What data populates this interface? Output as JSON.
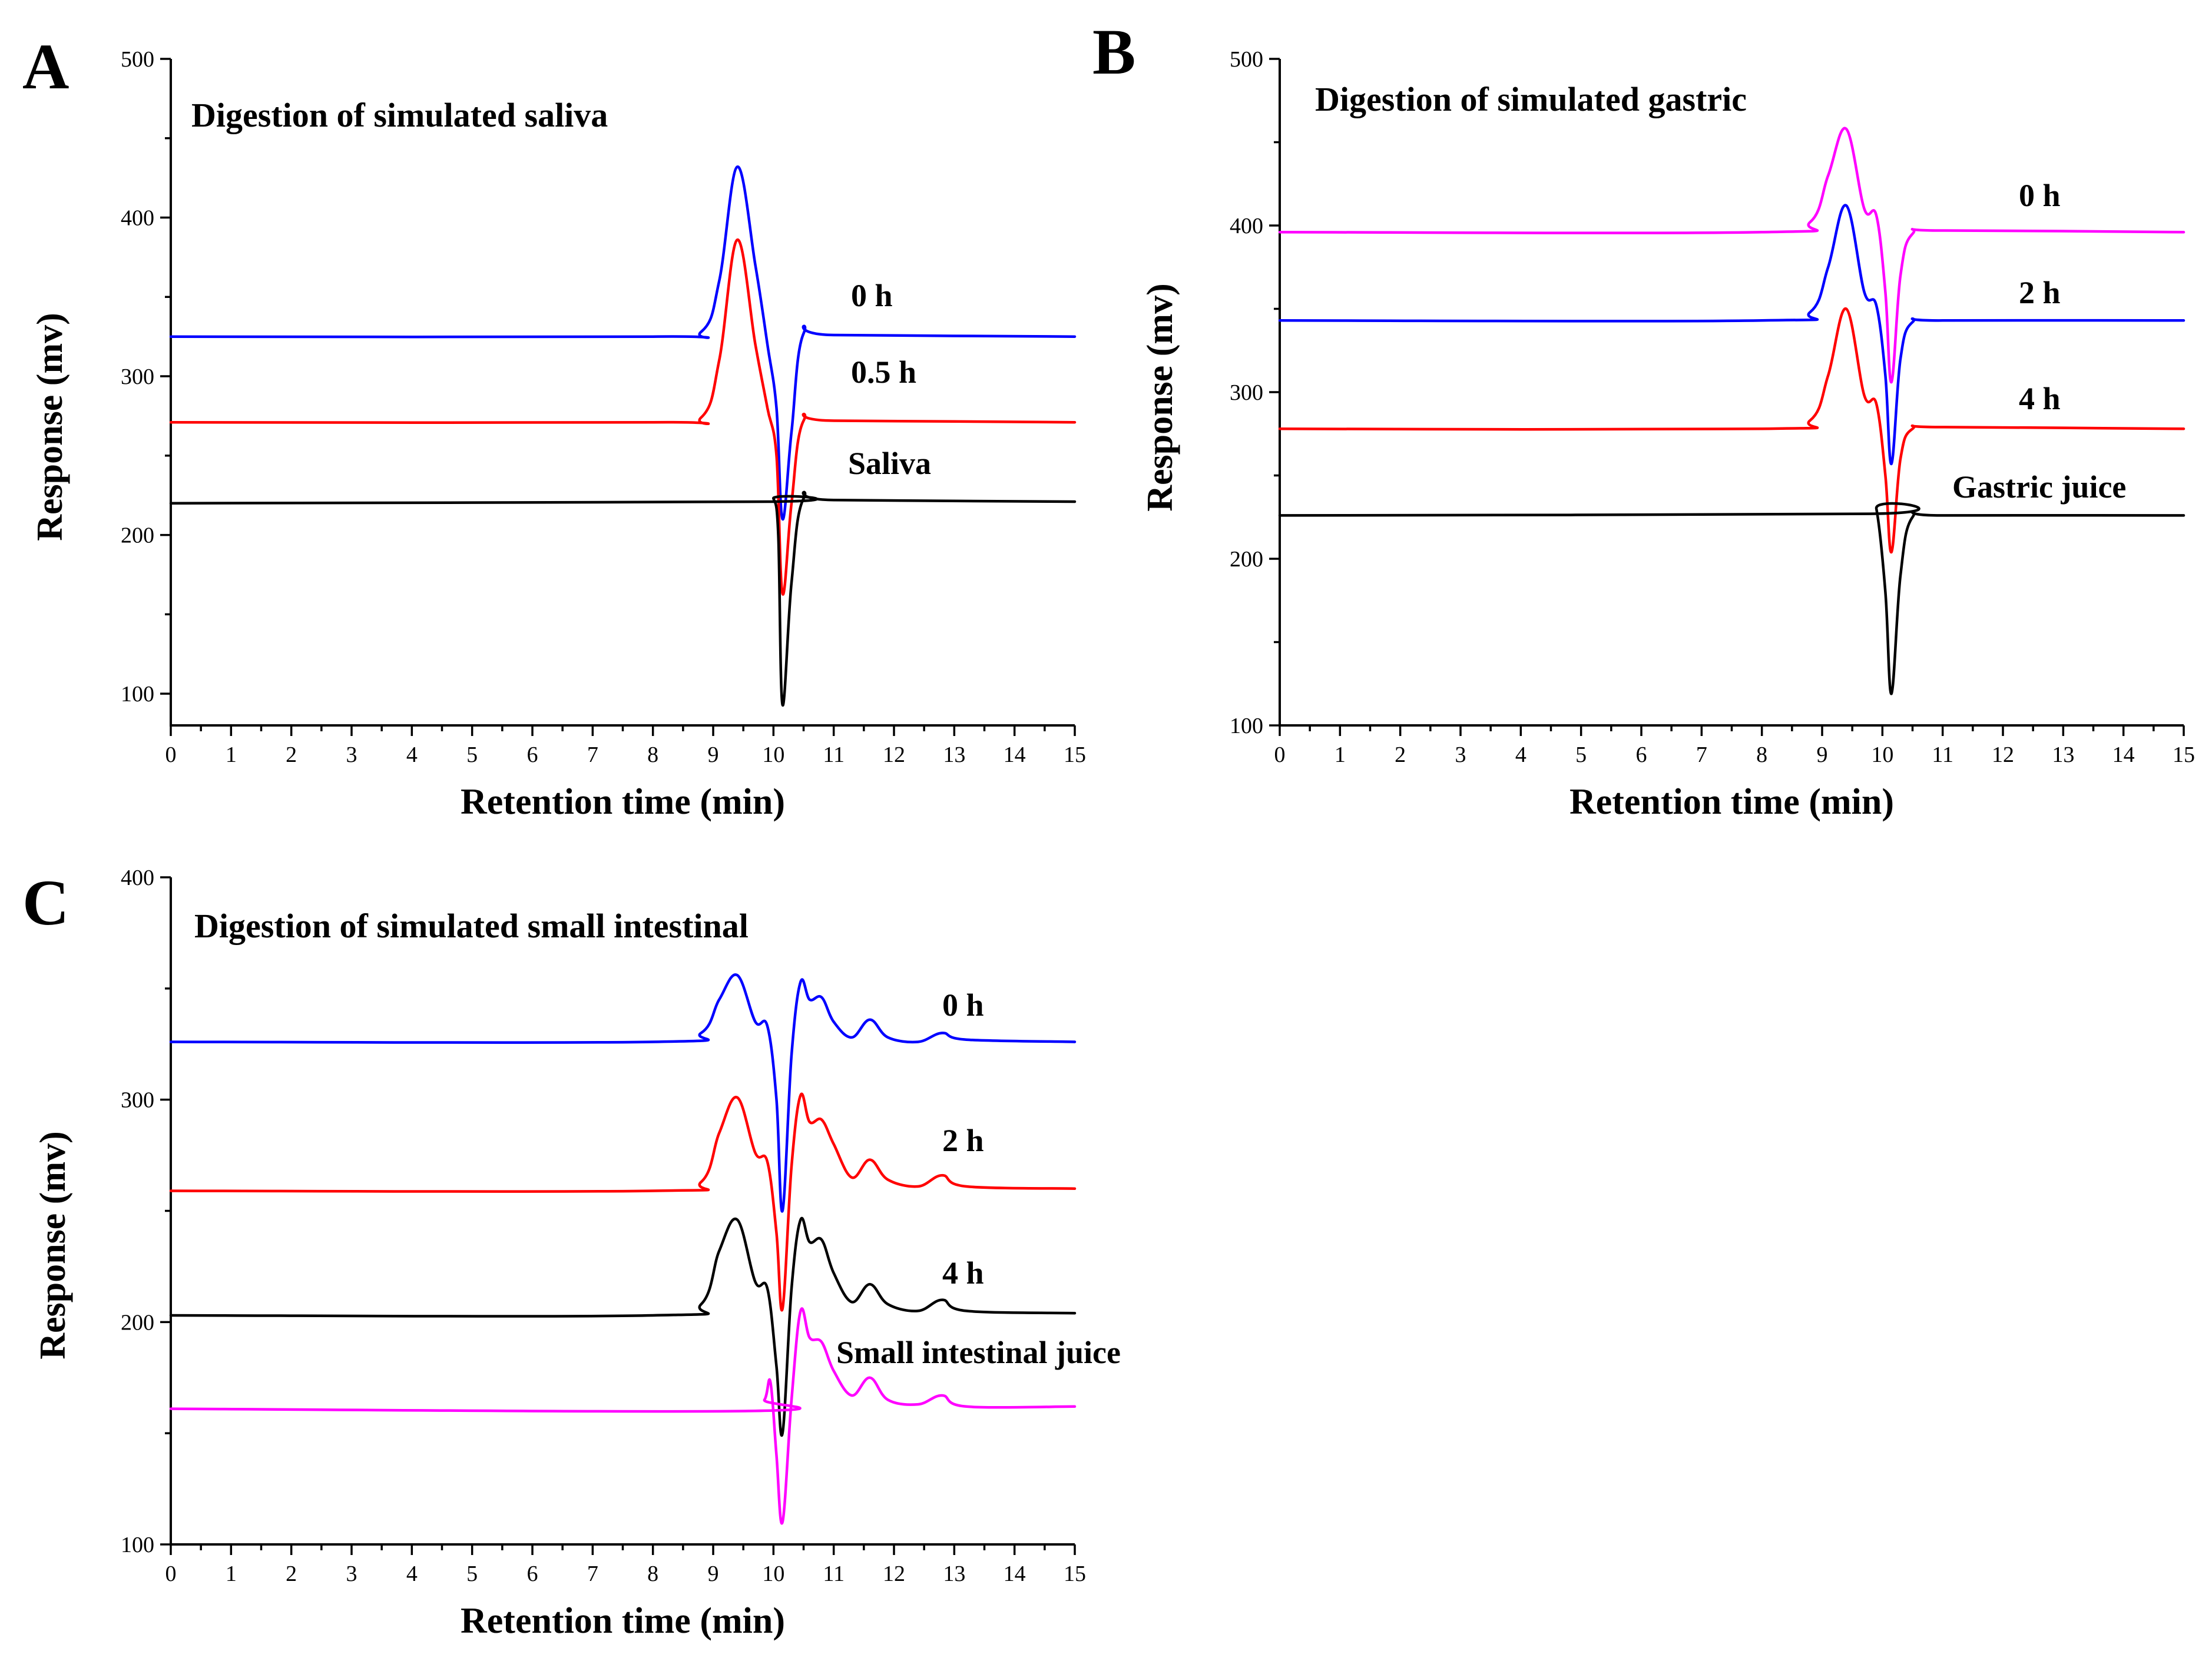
{
  "chart_data": [
    {
      "panel_letter": "A",
      "type": "line",
      "title": "Digestion of simulated saliva",
      "xlabel": "Retention time (min)",
      "ylabel": "Response (mv)",
      "xlim": [
        0,
        15
      ],
      "ylim": [
        80,
        500
      ],
      "x_ticks": [
        0,
        1,
        2,
        3,
        4,
        5,
        6,
        7,
        8,
        9,
        10,
        11,
        12,
        13,
        14,
        15
      ],
      "y_ticks": [
        100,
        200,
        300,
        400,
        500
      ],
      "grid": false,
      "series": [
        {
          "name": "0 h",
          "color": "#0000ff",
          "points": [
            [
              0,
              325
            ],
            [
              8.0,
              325
            ],
            [
              8.8,
              328
            ],
            [
              9.1,
              360
            ],
            [
              9.4,
              432
            ],
            [
              9.7,
              370
            ],
            [
              9.9,
              320
            ],
            [
              10.05,
              280
            ],
            [
              10.15,
              210
            ],
            [
              10.3,
              265
            ],
            [
              10.5,
              327
            ],
            [
              11.0,
              326
            ],
            [
              15,
              325
            ]
          ]
        },
        {
          "name": "0.5 h",
          "color": "#ff0000",
          "points": [
            [
              0,
              271
            ],
            [
              8.0,
              271
            ],
            [
              8.8,
              274
            ],
            [
              9.1,
              310
            ],
            [
              9.4,
              386
            ],
            [
              9.7,
              320
            ],
            [
              9.9,
              280
            ],
            [
              10.05,
              250
            ],
            [
              10.15,
              163
            ],
            [
              10.3,
              220
            ],
            [
              10.5,
              272
            ],
            [
              11.0,
              272
            ],
            [
              15,
              271
            ]
          ]
        },
        {
          "name": "Saliva",
          "color": "#000000",
          "points": [
            [
              0,
              220
            ],
            [
              9.9,
              221
            ],
            [
              10.0,
              223
            ],
            [
              10.08,
              200
            ],
            [
              10.15,
              93
            ],
            [
              10.3,
              170
            ],
            [
              10.5,
              223
            ],
            [
              11.0,
              222
            ],
            [
              15,
              221
            ]
          ]
        }
      ]
    },
    {
      "panel_letter": "B",
      "type": "line",
      "title": "Digestion of simulated gastric",
      "xlabel": "Retention time (min)",
      "ylabel": "Response (mv)",
      "xlim": [
        0,
        15
      ],
      "ylim": [
        100,
        500
      ],
      "x_ticks": [
        0,
        1,
        2,
        3,
        4,
        5,
        6,
        7,
        8,
        9,
        10,
        11,
        12,
        13,
        14,
        15
      ],
      "y_ticks": [
        100,
        200,
        300,
        400,
        500
      ],
      "grid": false,
      "series": [
        {
          "name": "0 h",
          "color": "#ff00ff",
          "points": [
            [
              0,
              396
            ],
            [
              8.0,
              396
            ],
            [
              8.8,
              402
            ],
            [
              9.1,
              430
            ],
            [
              9.4,
              458
            ],
            [
              9.7,
              410
            ],
            [
              9.9,
              406
            ],
            [
              10.05,
              360
            ],
            [
              10.15,
              306
            ],
            [
              10.3,
              370
            ],
            [
              10.5,
              395
            ],
            [
              11.0,
              397
            ],
            [
              15,
              396
            ]
          ]
        },
        {
          "name": "2 h",
          "color": "#0000ff",
          "points": [
            [
              0,
              343
            ],
            [
              8.0,
              343
            ],
            [
              8.8,
              348
            ],
            [
              9.1,
              375
            ],
            [
              9.4,
              412
            ],
            [
              9.7,
              360
            ],
            [
              9.9,
              352
            ],
            [
              10.05,
              310
            ],
            [
              10.15,
              257
            ],
            [
              10.3,
              320
            ],
            [
              10.5,
              342
            ],
            [
              11.0,
              343
            ],
            [
              15,
              343
            ]
          ]
        },
        {
          "name": "4 h",
          "color": "#ff0000",
          "points": [
            [
              0,
              278
            ],
            [
              8.0,
              278
            ],
            [
              8.8,
              283
            ],
            [
              9.1,
              310
            ],
            [
              9.4,
              350
            ],
            [
              9.7,
              298
            ],
            [
              9.9,
              293
            ],
            [
              10.05,
              250
            ],
            [
              10.15,
              204
            ],
            [
              10.3,
              260
            ],
            [
              10.5,
              278
            ],
            [
              11.0,
              279
            ],
            [
              15,
              278
            ]
          ]
        },
        {
          "name": "Gastric juice",
          "color": "#000000",
          "points": [
            [
              0,
              226
            ],
            [
              9.8,
              227
            ],
            [
              9.9,
              230
            ],
            [
              10.05,
              180
            ],
            [
              10.15,
              119
            ],
            [
              10.3,
              190
            ],
            [
              10.5,
              225
            ],
            [
              11.0,
              226
            ],
            [
              15,
              226
            ]
          ]
        }
      ]
    },
    {
      "panel_letter": "C",
      "type": "line",
      "title": "Digestion of simulated small intestinal",
      "xlabel": "Retention time (min)",
      "ylabel": "Response (mv)",
      "xlim": [
        0,
        15
      ],
      "ylim": [
        100,
        400
      ],
      "x_ticks": [
        0,
        1,
        2,
        3,
        4,
        5,
        6,
        7,
        8,
        9,
        10,
        11,
        12,
        13,
        14,
        15
      ],
      "y_ticks": [
        100,
        200,
        300,
        400
      ],
      "grid": false,
      "series": [
        {
          "name": "0 h",
          "color": "#0000ff",
          "points": [
            [
              0,
              326
            ],
            [
              8.0,
              326
            ],
            [
              8.8,
              330
            ],
            [
              9.1,
              345
            ],
            [
              9.4,
              356
            ],
            [
              9.7,
              335
            ],
            [
              9.9,
              333
            ],
            [
              10.05,
              300
            ],
            [
              10.15,
              250
            ],
            [
              10.3,
              320
            ],
            [
              10.45,
              353
            ],
            [
              10.6,
              345
            ],
            [
              10.8,
              346
            ],
            [
              11.0,
              335
            ],
            [
              11.3,
              328
            ],
            [
              11.6,
              336
            ],
            [
              11.9,
              328
            ],
            [
              12.4,
              326
            ],
            [
              12.8,
              330
            ],
            [
              13.2,
              327
            ],
            [
              15,
              326
            ]
          ]
        },
        {
          "name": "2 h",
          "color": "#ff0000",
          "points": [
            [
              0,
              259
            ],
            [
              8.0,
              259
            ],
            [
              8.8,
              263
            ],
            [
              9.1,
              285
            ],
            [
              9.4,
              301
            ],
            [
              9.7,
              276
            ],
            [
              9.9,
              272
            ],
            [
              10.05,
              240
            ],
            [
              10.15,
              206
            ],
            [
              10.3,
              270
            ],
            [
              10.45,
              302
            ],
            [
              10.6,
              290
            ],
            [
              10.8,
              291
            ],
            [
              11.0,
              280
            ],
            [
              11.3,
              265
            ],
            [
              11.6,
              273
            ],
            [
              11.9,
              264
            ],
            [
              12.4,
              261
            ],
            [
              12.8,
              266
            ],
            [
              13.2,
              261
            ],
            [
              15,
              260
            ]
          ]
        },
        {
          "name": "4 h",
          "color": "#000000",
          "points": [
            [
              0,
              203
            ],
            [
              8.0,
              203
            ],
            [
              8.8,
              208
            ],
            [
              9.1,
              232
            ],
            [
              9.4,
              246
            ],
            [
              9.7,
              218
            ],
            [
              9.9,
              215
            ],
            [
              10.05,
              180
            ],
            [
              10.15,
              150
            ],
            [
              10.3,
              215
            ],
            [
              10.45,
              246
            ],
            [
              10.6,
              236
            ],
            [
              10.8,
              237
            ],
            [
              11.0,
              222
            ],
            [
              11.3,
              209
            ],
            [
              11.6,
              217
            ],
            [
              11.9,
              208
            ],
            [
              12.4,
              205
            ],
            [
              12.8,
              210
            ],
            [
              13.2,
              205
            ],
            [
              15,
              204
            ]
          ]
        },
        {
          "name": "Small intestinal juice",
          "color": "#ff00ff",
          "points": [
            [
              0,
              161
            ],
            [
              9.6,
              160
            ],
            [
              9.85,
              165
            ],
            [
              9.95,
              173
            ],
            [
              10.05,
              140
            ],
            [
              10.15,
              110
            ],
            [
              10.3,
              165
            ],
            [
              10.45,
              205
            ],
            [
              10.6,
              193
            ],
            [
              10.8,
              191
            ],
            [
              11.0,
              178
            ],
            [
              11.3,
              167
            ],
            [
              11.6,
              175
            ],
            [
              11.9,
              165
            ],
            [
              12.4,
              163
            ],
            [
              12.8,
              167
            ],
            [
              13.2,
              162
            ],
            [
              15,
              162
            ]
          ]
        }
      ]
    }
  ]
}
